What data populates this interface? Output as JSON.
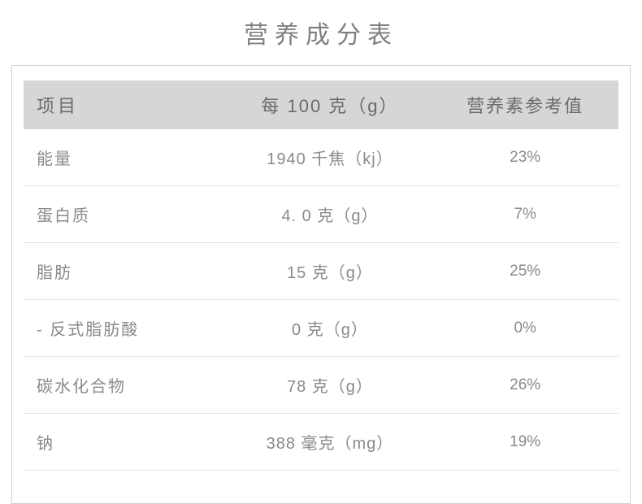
{
  "title": "营养成分表",
  "table": {
    "columns": {
      "item": "项目",
      "amount": "每 100 克（g）",
      "nrv": "营养素参考值"
    },
    "rows": [
      {
        "item": "能量",
        "amount": "1940 千焦（kj）",
        "nrv": "23%"
      },
      {
        "item": "蛋白质",
        "amount": "4. 0 克（g）",
        "nrv": "7%"
      },
      {
        "item": "脂肪",
        "amount": "15 克（g）",
        "nrv": "25%"
      },
      {
        "item": "- 反式脂肪酸",
        "amount": "0 克（g）",
        "nrv": "0%"
      },
      {
        "item": "碳水化合物",
        "amount": "78 克（g）",
        "nrv": "26%"
      },
      {
        "item": "钠",
        "amount": "388 毫克（mg）",
        "nrv": "19%"
      }
    ],
    "styles": {
      "header_bg": "#d6d6d6",
      "border_color": "#d0d0d0",
      "row_divider": "#e4e4e4",
      "text_color": "#8a8a8a",
      "title_color": "#808080",
      "title_fontsize": 30,
      "header_fontsize": 22,
      "cell_fontsize": 20
    }
  }
}
